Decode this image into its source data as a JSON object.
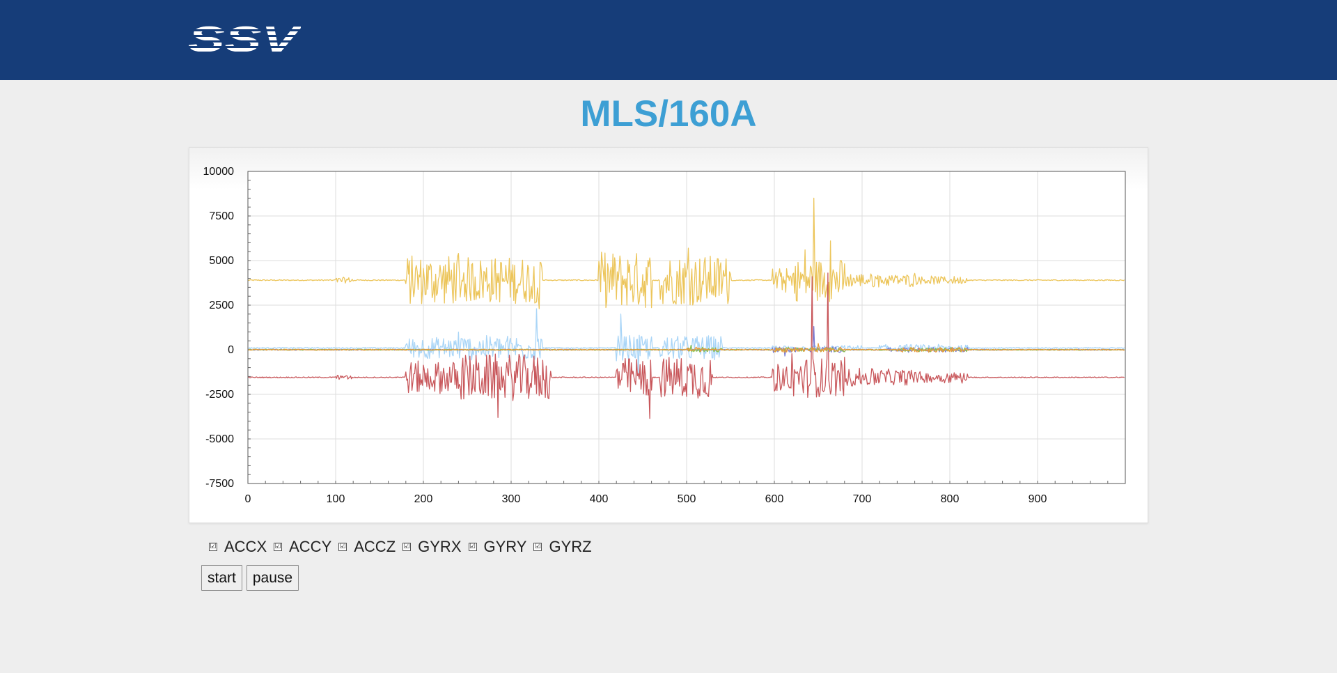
{
  "header": {
    "logo_text": "SSV",
    "logo_icon": "ssv-logo"
  },
  "page": {
    "title": "MLS/160A"
  },
  "legend": [
    {
      "label": "ACCX",
      "checked": true,
      "checkbox_glyph": "☑"
    },
    {
      "label": "ACCY",
      "checked": true,
      "checkbox_glyph": "☑"
    },
    {
      "label": "ACCZ",
      "checked": true,
      "checkbox_glyph": "☑"
    },
    {
      "label": "GYRX",
      "checked": true,
      "checkbox_glyph": "☑"
    },
    {
      "label": "GYRY",
      "checked": true,
      "checkbox_glyph": "☑"
    },
    {
      "label": "GYRZ",
      "checked": true,
      "checkbox_glyph": "☑"
    }
  ],
  "controls": {
    "start_label": "start",
    "pause_label": "pause"
  },
  "colors": {
    "header_bg": "#163d79",
    "title": "#3d9fd4",
    "page_bg": "#eeeeee"
  },
  "chart_data": {
    "type": "line",
    "xlim": [
      0,
      1000
    ],
    "ylim": [
      -7500,
      10000
    ],
    "x_ticks": [
      0,
      100,
      200,
      300,
      400,
      500,
      600,
      700,
      800,
      900
    ],
    "x_tick_labels": [
      "0",
      "100",
      "200",
      "300",
      "400",
      "500",
      "600",
      "700",
      "800",
      "900"
    ],
    "y_ticks": [
      10000,
      7500,
      5000,
      2500,
      0,
      -2500,
      -5000,
      -7500
    ],
    "y_tick_labels": [
      "10000",
      "7500",
      "5000",
      "2500",
      "0",
      "-2500",
      "-5000",
      "-7500"
    ],
    "grid": true,
    "series": [
      {
        "color": "#ecc55a",
        "baseline": 3900,
        "segments": [
          [
            100,
            120,
            150
          ],
          [
            180,
            240,
            1400
          ],
          [
            240,
            335,
            1300
          ],
          [
            400,
            460,
            1600
          ],
          [
            470,
            550,
            1400
          ],
          [
            598,
            620,
            700
          ],
          [
            620,
            680,
            1200
          ],
          [
            680,
            720,
            400
          ],
          [
            720,
            760,
            350
          ],
          [
            760,
            820,
            220
          ]
        ],
        "spikes": [
          [
            645,
            8500
          ],
          [
            664,
            6100
          ],
          [
            635,
            5600
          ],
          [
            502,
            5700
          ],
          [
            332,
            2300
          ]
        ]
      },
      {
        "color": "#a9d5f7",
        "baseline": 100,
        "segments": [
          [
            180,
            240,
            600
          ],
          [
            240,
            335,
            700
          ],
          [
            420,
            460,
            700
          ],
          [
            470,
            540,
            700
          ],
          [
            598,
            700,
            120
          ],
          [
            720,
            820,
            180
          ]
        ],
        "spikes": [
          [
            329,
            2300
          ],
          [
            425,
            2000
          ],
          [
            445,
            -1500
          ]
        ]
      },
      {
        "color": "#c8575b",
        "baseline": -1550,
        "segments": [
          [
            100,
            120,
            120
          ],
          [
            180,
            240,
            900
          ],
          [
            240,
            345,
            1300
          ],
          [
            420,
            460,
            1100
          ],
          [
            470,
            530,
            1200
          ],
          [
            598,
            620,
            800
          ],
          [
            620,
            680,
            1100
          ],
          [
            680,
            720,
            500
          ],
          [
            720,
            760,
            450
          ],
          [
            760,
            820,
            300
          ]
        ],
        "spikes": [
          [
            643,
            4100
          ],
          [
            661,
            4300
          ],
          [
            285,
            -3800
          ],
          [
            458,
            -3850
          ]
        ]
      },
      {
        "color": "#7a7fd6",
        "baseline": 0,
        "segments": [
          [
            598,
            680,
            150
          ],
          [
            730,
            820,
            120
          ]
        ],
        "spikes": [
          [
            645,
            1300
          ],
          [
            612,
            -350
          ]
        ]
      },
      {
        "color": "#8cc04a",
        "baseline": 0,
        "segments": [
          [
            500,
            540,
            120
          ],
          [
            600,
            680,
            110
          ],
          [
            740,
            820,
            100
          ]
        ],
        "spikes": [
          [
            505,
            250
          ]
        ]
      },
      {
        "color": "#e89a3c",
        "baseline": 0,
        "segments": [
          [
            500,
            520,
            120
          ],
          [
            600,
            680,
            140
          ],
          [
            740,
            820,
            120
          ]
        ],
        "spikes": [
          [
            650,
            350
          ]
        ]
      }
    ]
  }
}
